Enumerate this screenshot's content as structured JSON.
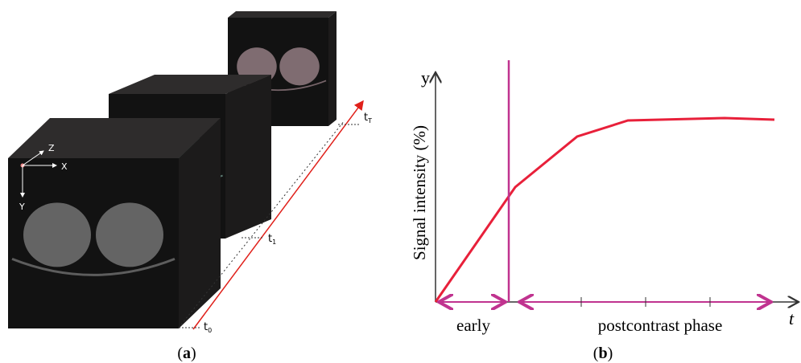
{
  "panel_a": {
    "axes": {
      "z": "Z",
      "x": "X",
      "y": "Y"
    },
    "time_points": [
      {
        "base": "t",
        "sub": "0"
      },
      {
        "base": "t",
        "sub": "1"
      },
      {
        "base": "t",
        "sub": "T"
      }
    ],
    "caption": {
      "open": "(",
      "letter": "a",
      "close": ")"
    }
  },
  "panel_b": {
    "y_symbol": "y",
    "y_axis_label": "Signal intensity (%)",
    "x_symbol": "t",
    "phases": [
      "early",
      "postcontrast phase"
    ],
    "caption": {
      "open": "(",
      "letter": "b",
      "close": ")"
    }
  }
}
